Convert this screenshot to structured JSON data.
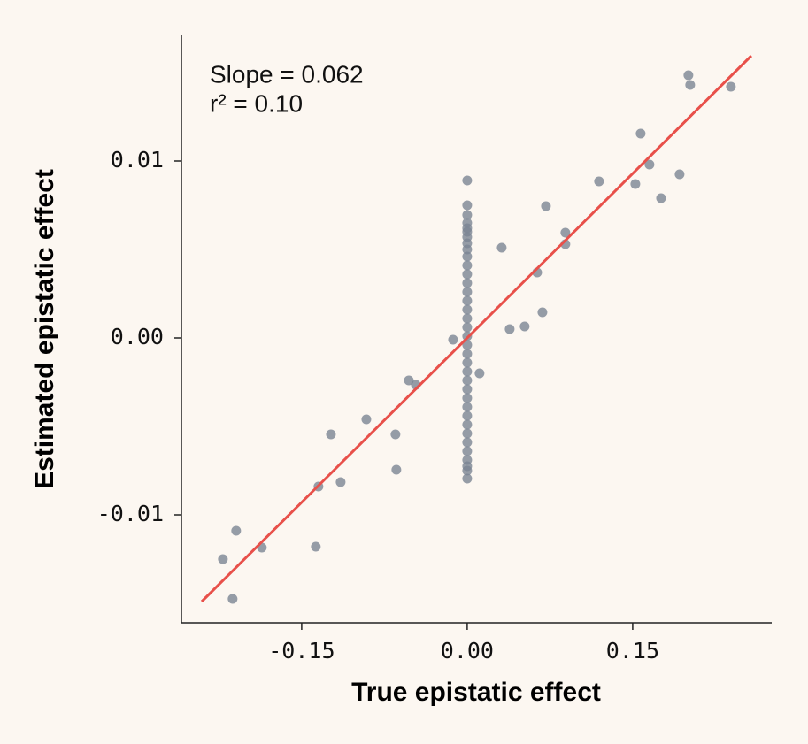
{
  "chart_data": {
    "type": "scatter",
    "x_label": "True epistatic effect",
    "y_label": "Estimated epistatic effect",
    "annotations": [
      "Slope = 0.062",
      "r² = 0.10"
    ],
    "xlim": [
      -0.259,
      0.276
    ],
    "ylim": [
      -0.0161,
      0.0171
    ],
    "xticks": [
      -0.15,
      {
        "value": 0,
        "label": "0.00"
      },
      0.15
    ],
    "yticks": [
      -0.01,
      {
        "value": 0,
        "label": "0.00"
      },
      0.01
    ],
    "series": [
      {
        "color": "#7b8594",
        "x": [
          0.2005,
          0.2021,
          0.239,
          0.1572,
          0.1652,
          0.1925,
          0.1524,
          0.1195,
          0.1757,
          0.0714,
          0.089,
          0.089,
          0.0313,
          0.0634,
          0.0682,
          0.0521,
          0.0385,
          -0.0128,
          0.0112,
          -0.0529,
          -0.0465,
          -0.0914,
          -0.1235,
          -0.065,
          -0.0642,
          -0.1348,
          -0.1147,
          -0.2094,
          -0.1861,
          -0.1372,
          -0.2214,
          -0.2126,
          0,
          0,
          0,
          0,
          0,
          0,
          0,
          0,
          0,
          0,
          0,
          0,
          0,
          0,
          0,
          0,
          0,
          0,
          0,
          0,
          0,
          0,
          0,
          0,
          0,
          0,
          0,
          0,
          0,
          0,
          0,
          0,
          0,
          0,
          0,
          0
        ],
        "y": [
          0.01485,
          0.0143,
          0.0142,
          0.01155,
          0.0098,
          0.00925,
          0.0087,
          0.00885,
          0.0079,
          0.00745,
          0.00595,
          0.0053,
          0.0051,
          0.0037,
          0.00145,
          0.00065,
          0.0005,
          -0.0001,
          -0.002,
          -0.0024,
          -0.00265,
          -0.0046,
          -0.00545,
          -0.00545,
          -0.00745,
          -0.0084,
          -0.00815,
          -0.0109,
          -0.01185,
          -0.0118,
          -0.0125,
          -0.01475,
          0.0089,
          0.0075,
          0.00695,
          0.0065,
          0.0062,
          0.006,
          0.0057,
          0.00535,
          0.005,
          0.0046,
          0.0041,
          0.0036,
          0.0031,
          0.0026,
          0.0021,
          0.0016,
          0.0011,
          0.0006,
          0.0001,
          -0.0004,
          -0.0009,
          -0.0014,
          -0.0019,
          -0.0024,
          -0.0029,
          -0.0034,
          -0.0039,
          -0.0044,
          -0.0049,
          -0.0054,
          -0.0059,
          -0.0064,
          -0.0069,
          -0.00725,
          -0.0075,
          -0.00795
        ]
      }
    ],
    "fit_line": {
      "color": "#e8504a",
      "x": [
        -0.2406,
        0.2575
      ],
      "y": [
        -0.0149,
        0.01595
      ]
    }
  }
}
